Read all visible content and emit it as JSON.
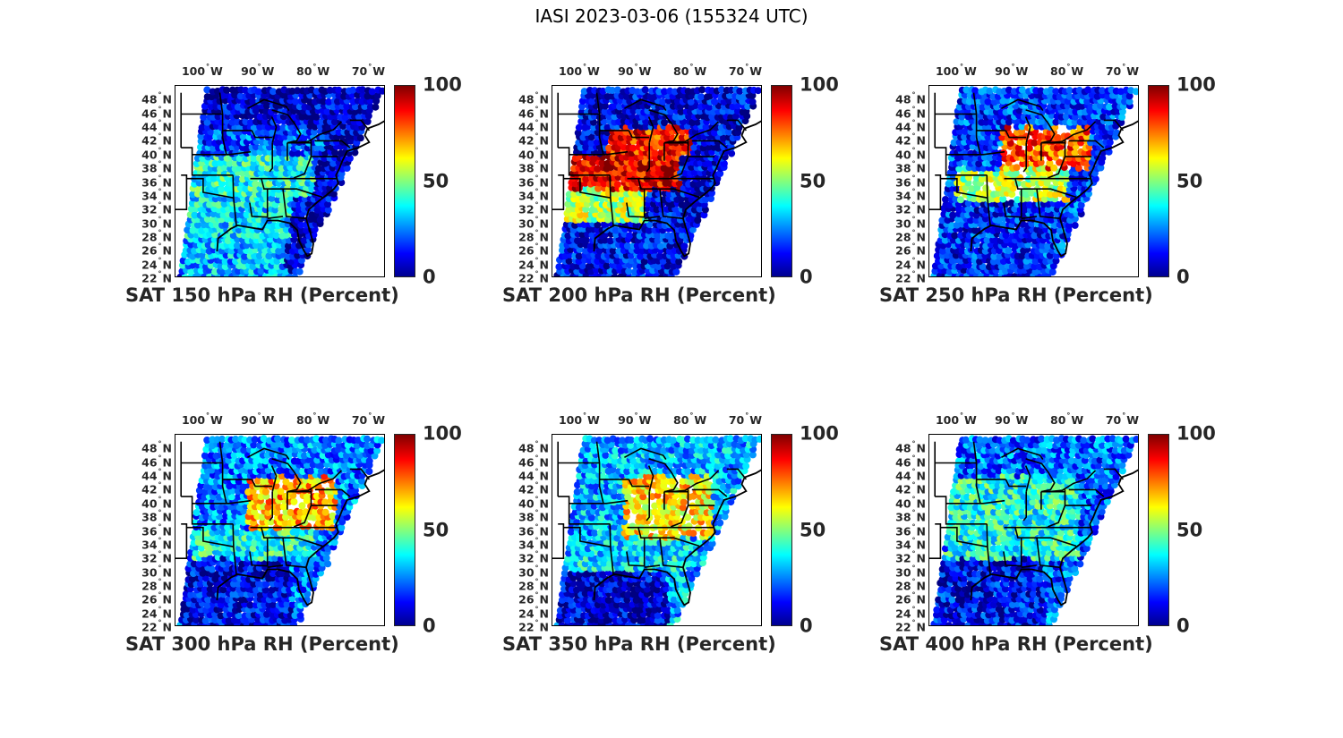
{
  "title": "IASI 2023-03-06 (155324 UTC)",
  "colorbar": {
    "min": 0,
    "max": 100,
    "ticks": [
      "0",
      "50",
      "100"
    ],
    "colormap": "jet"
  },
  "axes": {
    "lon_ticks": [
      {
        "value": -100,
        "num": "100",
        "hemi": "W"
      },
      {
        "value": -90,
        "num": "90",
        "hemi": "W"
      },
      {
        "value": -80,
        "num": "80",
        "hemi": "W"
      },
      {
        "value": -70,
        "num": "70",
        "hemi": "W"
      }
    ],
    "lat_ticks": [
      {
        "value": 48,
        "num": "48",
        "hemi": "N"
      },
      {
        "value": 46,
        "num": "46",
        "hemi": "N"
      },
      {
        "value": 44,
        "num": "44",
        "hemi": "N"
      },
      {
        "value": 42,
        "num": "42",
        "hemi": "N"
      },
      {
        "value": 40,
        "num": "40",
        "hemi": "N"
      },
      {
        "value": 38,
        "num": "38",
        "hemi": "N"
      },
      {
        "value": 36,
        "num": "36",
        "hemi": "N"
      },
      {
        "value": 34,
        "num": "34",
        "hemi": "N"
      },
      {
        "value": 32,
        "num": "32",
        "hemi": "N"
      },
      {
        "value": 30,
        "num": "30",
        "hemi": "N"
      },
      {
        "value": 28,
        "num": "28",
        "hemi": "N"
      },
      {
        "value": 26,
        "num": "26",
        "hemi": "N"
      },
      {
        "value": 24,
        "num": "24",
        "hemi": "N"
      },
      {
        "value": 22,
        "num": "22",
        "hemi": "N"
      }
    ],
    "lon_range": [
      -105,
      -67
    ],
    "lat_range": [
      22,
      50
    ]
  },
  "panels": [
    {
      "title": "SAT 150 hPa RH (Percent)",
      "level_hpa": 150,
      "regions": [
        {
          "name": "north",
          "lon": [
            -102,
            -68
          ],
          "lat": [
            44,
            50
          ],
          "rh": 8
        },
        {
          "name": "north-central",
          "lon": [
            -102,
            -78
          ],
          "lat": [
            40,
            44
          ],
          "rh": 20
        },
        {
          "name": "central",
          "lon": [
            -103,
            -80
          ],
          "lat": [
            34,
            40
          ],
          "rh": 40
        },
        {
          "name": "gulf-coast",
          "lon": [
            -104,
            -84
          ],
          "lat": [
            28,
            34
          ],
          "rh": 35
        },
        {
          "name": "south",
          "lon": [
            -104,
            -85
          ],
          "lat": [
            22,
            28
          ],
          "rh": 30
        }
      ]
    },
    {
      "title": "SAT 200 hPa RH (Percent)",
      "level_hpa": 200,
      "regions": [
        {
          "name": "north",
          "lon": [
            -102,
            -68
          ],
          "lat": [
            44,
            50
          ],
          "rh": 10
        },
        {
          "name": "great-lakes",
          "lon": [
            -95,
            -80
          ],
          "lat": [
            40,
            44
          ],
          "rh": 85
        },
        {
          "name": "central",
          "lon": [
            -104,
            -82
          ],
          "lat": [
            35,
            40
          ],
          "rh": 90
        },
        {
          "name": "south-central",
          "lon": [
            -104,
            -88
          ],
          "lat": [
            30,
            35
          ],
          "rh": 55
        },
        {
          "name": "south",
          "lon": [
            -104,
            -84
          ],
          "lat": [
            22,
            30
          ],
          "rh": 12
        }
      ]
    },
    {
      "title": "SAT 250 hPa RH (Percent)",
      "level_hpa": 250,
      "regions": [
        {
          "name": "north",
          "lon": [
            -102,
            -68
          ],
          "lat": [
            44,
            50
          ],
          "rh": 18
        },
        {
          "name": "great-lakes",
          "lon": [
            -92,
            -76
          ],
          "lat": [
            38,
            44
          ],
          "rh": 80
        },
        {
          "name": "central",
          "lon": [
            -100,
            -80
          ],
          "lat": [
            33,
            38
          ],
          "rh": 55
        },
        {
          "name": "south",
          "lon": [
            -104,
            -84
          ],
          "lat": [
            22,
            33
          ],
          "rh": 15
        }
      ]
    },
    {
      "title": "SAT 300 hPa RH (Percent)",
      "level_hpa": 300,
      "regions": [
        {
          "name": "north",
          "lon": [
            -102,
            -68
          ],
          "lat": [
            44,
            50
          ],
          "rh": 25
        },
        {
          "name": "ohio-valley",
          "lon": [
            -92,
            -76
          ],
          "lat": [
            36,
            44
          ],
          "rh": 70
        },
        {
          "name": "central",
          "lon": [
            -102,
            -80
          ],
          "lat": [
            32,
            36
          ],
          "rh": 40
        },
        {
          "name": "south",
          "lon": [
            -104,
            -84
          ],
          "lat": [
            22,
            32
          ],
          "rh": 10
        }
      ]
    },
    {
      "title": "SAT 350 hPa RH (Percent)",
      "level_hpa": 350,
      "regions": [
        {
          "name": "north",
          "lon": [
            -102,
            -68
          ],
          "lat": [
            44,
            50
          ],
          "rh": 30
        },
        {
          "name": "ohio-valley",
          "lon": [
            -92,
            -76
          ],
          "lat": [
            35,
            44
          ],
          "rh": 65
        },
        {
          "name": "central",
          "lon": [
            -102,
            -80
          ],
          "lat": [
            30,
            35
          ],
          "rh": 35
        },
        {
          "name": "south",
          "lon": [
            -104,
            -84
          ],
          "lat": [
            22,
            30
          ],
          "rh": 8
        }
      ]
    },
    {
      "title": "SAT 400 hPa RH (Percent)",
      "level_hpa": 400,
      "regions": [
        {
          "name": "north",
          "lon": [
            -102,
            -68
          ],
          "lat": [
            44,
            50
          ],
          "rh": 22
        },
        {
          "name": "central",
          "lon": [
            -102,
            -78
          ],
          "lat": [
            32,
            44
          ],
          "rh": 40
        },
        {
          "name": "south",
          "lon": [
            -104,
            -84
          ],
          "lat": [
            22,
            32
          ],
          "rh": 12
        }
      ]
    }
  ]
}
